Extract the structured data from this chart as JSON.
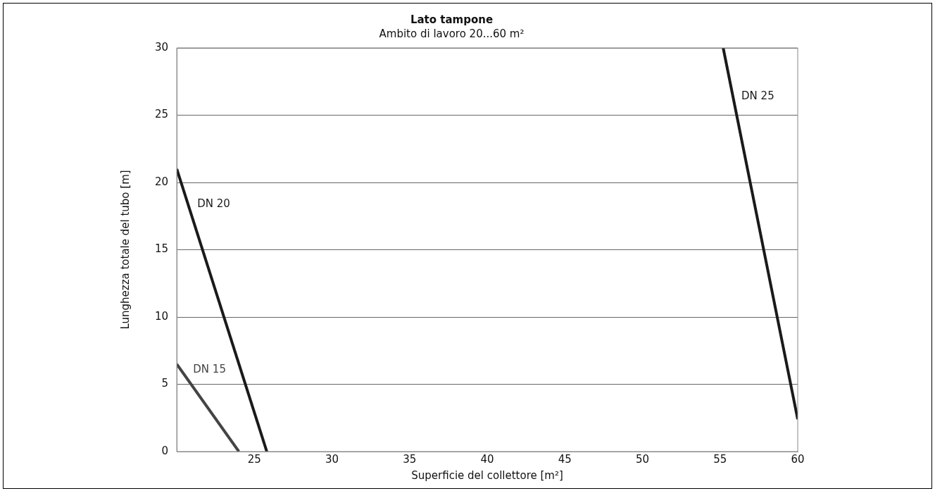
{
  "chart_data": {
    "type": "line",
    "title": "Lato tampone",
    "subtitle": "Ambito di lavoro 20...60 m²",
    "xlabel": "Superficie del collettore [m²]",
    "ylabel": "Lunghezza totale del tubo [m]",
    "series": [
      {
        "name": "DN 15",
        "color": "#444444",
        "x": [
          20,
          24
        ],
        "values": [
          6.5,
          0
        ]
      },
      {
        "name": "DN 20",
        "color": "#1a1a1a",
        "x": [
          20,
          25.8
        ],
        "values": [
          21,
          0
        ]
      },
      {
        "name": "DN 25",
        "color": "#1a1a1a",
        "x": [
          55.2,
          60
        ],
        "values": [
          30,
          2.4
        ]
      }
    ],
    "xlim": [
      20,
      60
    ],
    "xticks": [
      25,
      30,
      35,
      40,
      45,
      50,
      55,
      60
    ],
    "ylim": [
      0,
      30
    ],
    "yticks": [
      0,
      5,
      10,
      15,
      20,
      25,
      30
    ],
    "grid": "y",
    "legend": false,
    "marker": "none",
    "line_style": "solid"
  }
}
